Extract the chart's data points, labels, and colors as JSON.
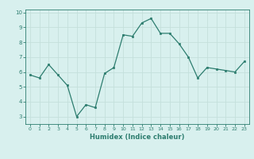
{
  "x": [
    0,
    1,
    2,
    3,
    4,
    5,
    6,
    7,
    8,
    9,
    10,
    11,
    12,
    13,
    14,
    15,
    16,
    17,
    18,
    19,
    20,
    21,
    22,
    23
  ],
  "y": [
    5.8,
    5.6,
    6.5,
    5.8,
    5.1,
    3.0,
    3.8,
    3.6,
    5.9,
    6.3,
    8.5,
    8.4,
    9.3,
    9.6,
    8.6,
    8.6,
    7.9,
    7.0,
    5.6,
    6.3,
    6.2,
    6.1,
    6.0,
    6.7
  ],
  "xlabel": "Humidex (Indice chaleur)",
  "ylim": [
    2.5,
    10.2
  ],
  "xlim": [
    -0.5,
    23.5
  ],
  "yticks": [
    3,
    4,
    5,
    6,
    7,
    8,
    9,
    10
  ],
  "xticks": [
    0,
    1,
    2,
    3,
    4,
    5,
    6,
    7,
    8,
    9,
    10,
    11,
    12,
    13,
    14,
    15,
    16,
    17,
    18,
    19,
    20,
    21,
    22,
    23
  ],
  "line_color": "#2d7d6f",
  "marker_color": "#2d7d6f",
  "bg_color": "#d8f0ee",
  "grid_color": "#c4e0dc",
  "axis_color": "#2d7d6f",
  "tick_color": "#2d7d6f",
  "xlabel_color": "#2d7d6f"
}
